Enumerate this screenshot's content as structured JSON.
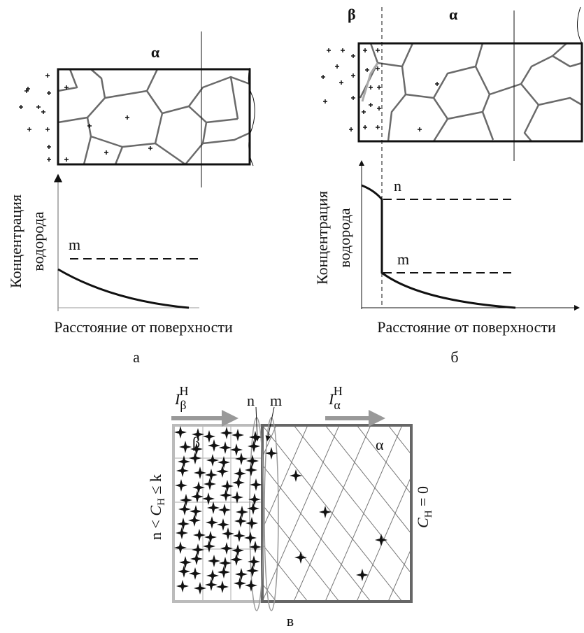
{
  "panel_a": {
    "phase": "α",
    "y_label": [
      "Концентрация",
      "водорода"
    ],
    "level_m": "m",
    "x_label": "Расстояние от поверхности",
    "caption": "а"
  },
  "panel_b": {
    "phase_beta": "β",
    "phase_alpha": "α",
    "y_label": [
      "Концентрация",
      "водорода"
    ],
    "level_n": "n",
    "level_m": "m",
    "x_label": "Расстояние от поверхности",
    "caption": "б"
  },
  "panel_c": {
    "flux_beta": {
      "symbol": "I",
      "sub": "β",
      "sup": "H"
    },
    "flux_alpha": {
      "symbol": "I",
      "sub": "α",
      "sup": "H"
    },
    "boundary_n": "n",
    "boundary_m": "m",
    "phase_beta": "β",
    "phase_alpha": "α",
    "left_condition": {
      "pre": "n < ",
      "symbol": "C",
      "sub": "H",
      "post": " ≤ k"
    },
    "right_condition": {
      "symbol": "C",
      "sub": "H",
      "post": " = 0"
    },
    "caption": "в"
  }
}
